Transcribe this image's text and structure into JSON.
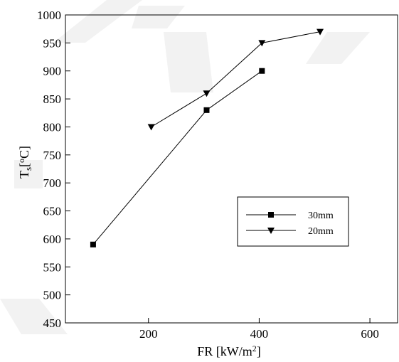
{
  "chart_data": {
    "type": "line",
    "xlabel": "FR [kW/m²]",
    "ylabel": "Ts[°C]",
    "xlim": [
      50,
      650
    ],
    "ylim": [
      450,
      1000
    ],
    "xticks": [
      200,
      400,
      600
    ],
    "yticks": [
      450,
      500,
      550,
      600,
      650,
      700,
      750,
      800,
      850,
      900,
      950,
      1000
    ],
    "grid": false,
    "legend_position": "lower-right",
    "series": [
      {
        "name": "30mm",
        "marker": "square",
        "color": "#000000",
        "points": [
          [
            100,
            590
          ],
          [
            305,
            830
          ],
          [
            405,
            900
          ]
        ]
      },
      {
        "name": "20mm",
        "marker": "triangle-down",
        "color": "#000000",
        "points": [
          [
            205,
            800
          ],
          [
            305,
            860
          ],
          [
            405,
            950
          ],
          [
            510,
            970
          ]
        ]
      }
    ]
  }
}
